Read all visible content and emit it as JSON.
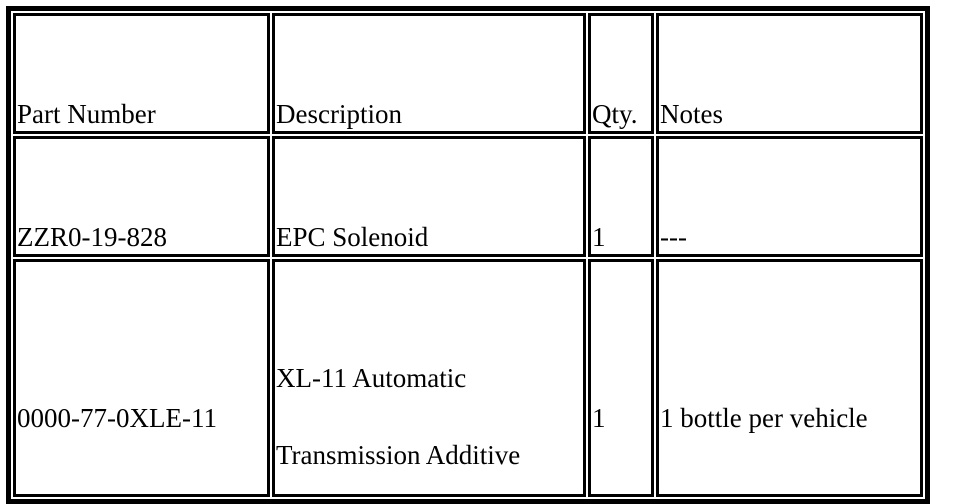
{
  "table": {
    "headers": [
      "Part Number",
      "Description",
      "Qty.",
      "Notes"
    ],
    "rows": [
      {
        "part_number": "ZZR0-19-828",
        "description": [
          "EPC Solenoid"
        ],
        "qty": "1",
        "notes": "---"
      },
      {
        "part_number": "0000-77-0XLE-11",
        "description": [
          "XL-11 Automatic",
          "Transmission Additive"
        ],
        "qty": "1",
        "notes": "1 bottle per vehicle"
      }
    ]
  }
}
